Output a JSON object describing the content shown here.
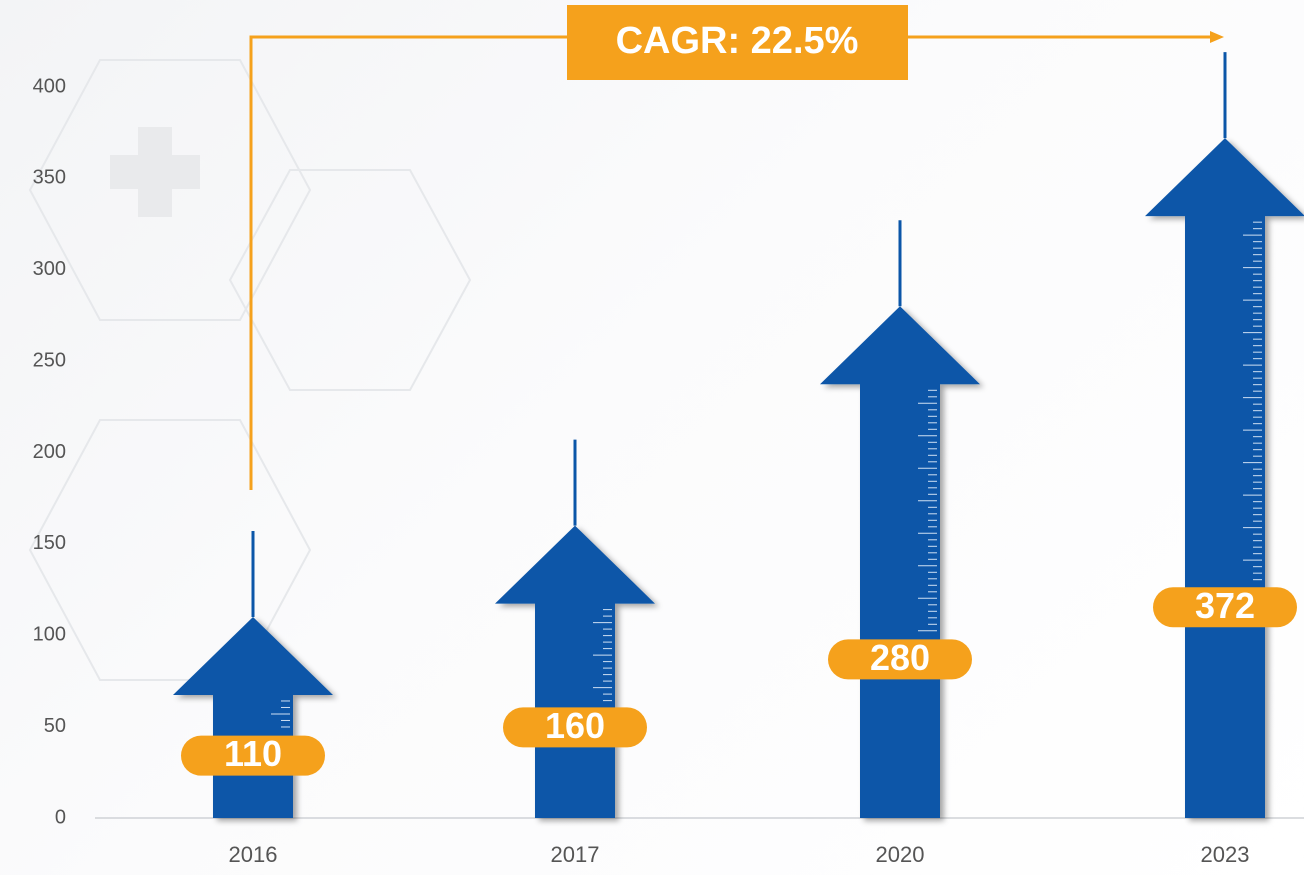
{
  "chart_data": {
    "type": "arrow-bar",
    "annotation": "CAGR: 22.5%",
    "categories": [
      "2016",
      "2017",
      "2020",
      "2023"
    ],
    "values": [
      110,
      160,
      280,
      372
    ],
    "color": "#0b56a8",
    "label_color": "#f5a11c",
    "ylim": [
      0,
      400
    ],
    "yticks": [
      0,
      50,
      100,
      150,
      200,
      250,
      300,
      350,
      400
    ]
  }
}
